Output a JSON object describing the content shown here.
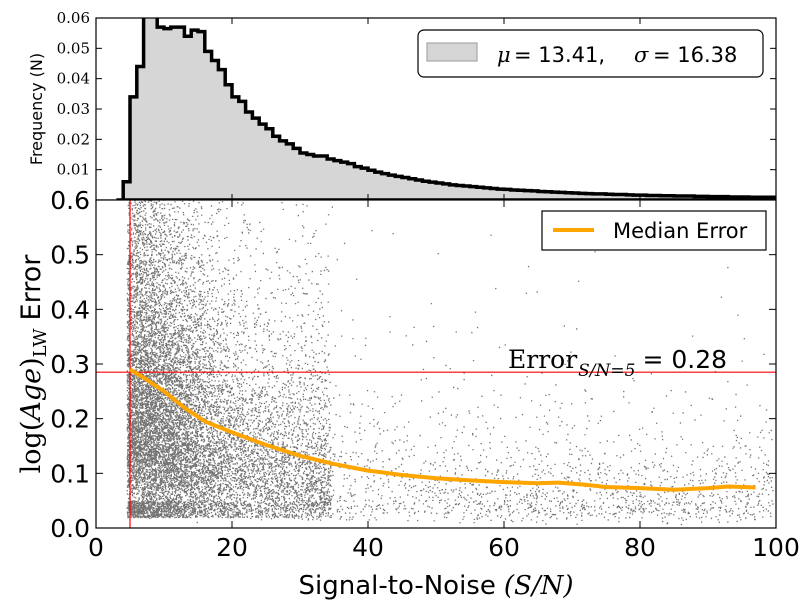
{
  "colors": {
    "hist_fill": "#d6d6d6",
    "hist_edge": "#000000",
    "median_line": "#ffa500",
    "threshold_line": "#ff0000",
    "scatter_point": "#000000"
  },
  "chart_data": [
    {
      "type": "histogram",
      "panel": "top",
      "ylabel": "Frequency (N)",
      "xlim": [
        0,
        100
      ],
      "ylim": [
        0,
        0.06
      ],
      "yticks": [
        0.01,
        0.02,
        0.03,
        0.04,
        0.05,
        0.06
      ],
      "ytick_labels": [
        "0.01",
        "0.02",
        "0.03",
        "0.04",
        "0.05",
        "0.06"
      ],
      "bin_width": 1,
      "bins_start": 3,
      "values": [
        0.0,
        0.006,
        0.034,
        0.044,
        0.0605,
        0.0605,
        0.057,
        0.0565,
        0.057,
        0.057,
        0.054,
        0.056,
        0.0555,
        0.049,
        0.046,
        0.043,
        0.038,
        0.034,
        0.0325,
        0.029,
        0.027,
        0.025,
        0.0235,
        0.021,
        0.0195,
        0.0185,
        0.017,
        0.0155,
        0.015,
        0.0145,
        0.0145,
        0.0135,
        0.013,
        0.0125,
        0.012,
        0.011,
        0.0105,
        0.0098,
        0.0092,
        0.0087,
        0.0082,
        0.0078,
        0.0074,
        0.007,
        0.0066,
        0.0062,
        0.0059,
        0.0056,
        0.0053,
        0.005,
        0.0048,
        0.0046,
        0.0044,
        0.0042,
        0.004,
        0.0038,
        0.0036,
        0.0035,
        0.0033,
        0.0032,
        0.0031,
        0.003,
        0.0028,
        0.0027,
        0.0026,
        0.0025,
        0.0024,
        0.0023,
        0.0022,
        0.0021,
        0.002,
        0.002,
        0.0019,
        0.0018,
        0.0018,
        0.0017,
        0.0016,
        0.0016,
        0.0015,
        0.0015,
        0.0014,
        0.0014,
        0.0013,
        0.0013,
        0.0013,
        0.0012,
        0.0012,
        0.0011,
        0.0011,
        0.0011,
        0.001,
        0.001,
        0.001,
        0.0009,
        0.0009,
        0.0009,
        0.0009
      ],
      "legend": {
        "text": "μ = 13.41, σ = 16.38",
        "mu_symbol": "μ",
        "mu_value": "= 13.41,",
        "sigma_symbol": "σ",
        "sigma_value": "= 16.38",
        "location": "upper right"
      }
    },
    {
      "type": "scatter",
      "panel": "bottom",
      "xlabel": "Signal-to-Noise (S/N)",
      "xlabel_text": "Signal-to-Noise",
      "xlabel_math": "(S/N)",
      "ylabel": "log(Age)LW Error",
      "ylabel_log": "log(",
      "ylabel_age": "Age",
      "ylabel_close": ")",
      "ylabel_sub": "LW",
      "ylabel_error": "Error",
      "xlim": [
        0,
        100
      ],
      "ylim": [
        0,
        0.6
      ],
      "xticks": [
        0,
        20,
        40,
        60,
        80,
        100
      ],
      "xtick_labels": [
        "0",
        "20",
        "40",
        "60",
        "80",
        "100"
      ],
      "yticks": [
        0.0,
        0.1,
        0.2,
        0.3,
        0.4,
        0.5,
        0.6
      ],
      "ytick_labels": [
        "0.0",
        "0.1",
        "0.2",
        "0.3",
        "0.4",
        "0.5",
        "0.6"
      ],
      "threshold": {
        "x": 5,
        "y": 0.285
      },
      "annotation": {
        "text": "ErrorS/N=5 = 0.28",
        "error_word": "Error",
        "subscript": "S/N=5",
        "value": "= 0.28",
        "x": 60,
        "y": 0.3
      },
      "series": [
        {
          "name": "Median Error",
          "x": [
            5,
            7,
            10,
            13,
            16,
            20,
            25,
            30,
            35,
            40,
            45,
            50,
            55,
            60,
            65,
            68,
            72,
            75,
            80,
            85,
            90,
            93,
            97
          ],
          "y": [
            0.29,
            0.275,
            0.25,
            0.22,
            0.195,
            0.175,
            0.152,
            0.132,
            0.117,
            0.105,
            0.097,
            0.091,
            0.087,
            0.084,
            0.082,
            0.083,
            0.079,
            0.075,
            0.073,
            0.07,
            0.073,
            0.076,
            0.074
          ]
        }
      ],
      "legend": {
        "label": "Median Error",
        "location": "upper right"
      },
      "scatter_seed": 12345
    }
  ]
}
